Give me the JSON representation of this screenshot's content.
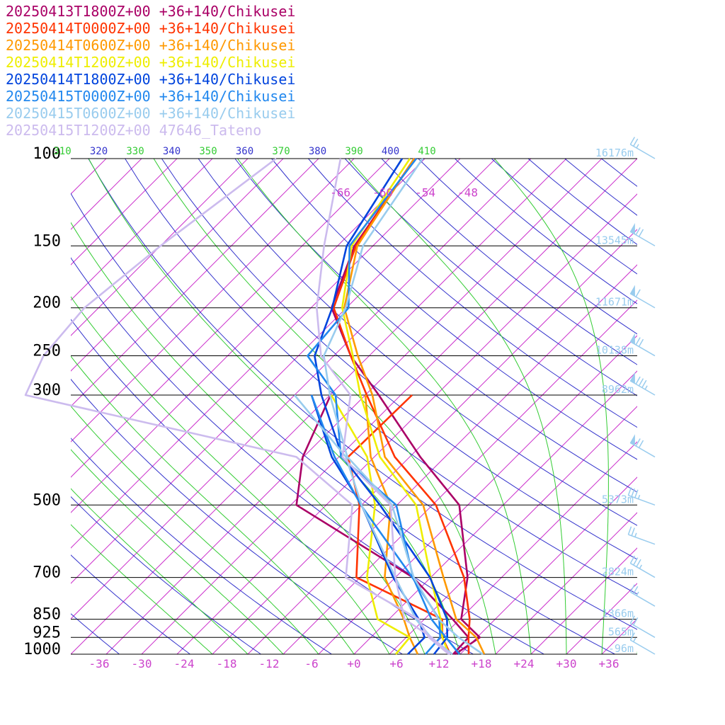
{
  "legend": [
    {
      "label": "20250413T1800Z+00 +36+140/Chikusei",
      "color": "#aa0066"
    },
    {
      "label": "20250414T0000Z+00 +36+140/Chikusei",
      "color": "#ff3300"
    },
    {
      "label": "20250414T0600Z+00 +36+140/Chikusei",
      "color": "#ff9900"
    },
    {
      "label": "20250414T1200Z+00 +36+140/Chikusei",
      "color": "#eeee00"
    },
    {
      "label": "20250414T1800Z+00 +36+140/Chikusei",
      "color": "#0044dd"
    },
    {
      "label": "20250415T0000Z+00 +36+140/Chikusei",
      "color": "#2288ee"
    },
    {
      "label": "20250415T0600Z+00 +36+140/Chikusei",
      "color": "#99ccee"
    },
    {
      "label": "20250415T1200Z+00 47646_Tateno",
      "color": "#ccbbee"
    }
  ],
  "chart_data": {
    "type": "line",
    "chart_kind": "skew-T log-P sounding",
    "pressure_ticks": [
      "100",
      "150",
      "200",
      "250",
      "300",
      "500",
      "700",
      "850",
      "925",
      "1000"
    ],
    "temperature_ticks": [
      "-36",
      "-30",
      "-24",
      "-18",
      "-12",
      "-6",
      "+0",
      "+6",
      "+12",
      "+18",
      "+24",
      "+30",
      "+36"
    ],
    "upper_temperature_ticks": [
      "-66",
      "-60",
      "-54",
      "-48"
    ],
    "theta_ticks": [
      "310",
      "320",
      "330",
      "340",
      "350",
      "360",
      "370",
      "380",
      "390",
      "400",
      "410"
    ],
    "heights": [
      {
        "p": 100,
        "label": "16176m"
      },
      {
        "p": 150,
        "label": "13545m"
      },
      {
        "p": 200,
        "label": "11671m"
      },
      {
        "p": 250,
        "label": "10138m"
      },
      {
        "p": 300,
        "label": "8962m"
      },
      {
        "p": 500,
        "label": "5373m"
      },
      {
        "p": 700,
        "label": "2824m"
      },
      {
        "p": 850,
        "label": "1366m"
      },
      {
        "p": 925,
        "label": "565m"
      },
      {
        "p": 1000,
        "label": "-96m"
      }
    ],
    "p_range": [
      100,
      1000
    ],
    "t_range_at_1000": [
      -40,
      40
    ],
    "colors": {
      "isotherm": "#cc33cc",
      "isobar": "#000000",
      "dry_adiabat": "#3333cc",
      "moist_adiabat": "#33cc33",
      "height_label": "#99ccee",
      "wind_barb": "#99ccee",
      "t_label": "#cc44cc",
      "theta_dry": "#3333cc",
      "theta_moist": "#33cc33"
    },
    "series": [
      {
        "name": "20250413T1800Z+00 +36+140/Chikusei",
        "color": "#aa0066",
        "temperature": [
          [
            1000,
            14.3
          ],
          [
            925,
            15.4
          ],
          [
            850,
            10.2
          ],
          [
            700,
            5.2
          ],
          [
            500,
            -6.2
          ],
          [
            400,
            -18.5
          ],
          [
            300,
            -33.1
          ],
          [
            250,
            -42.6
          ],
          [
            200,
            -52.1
          ],
          [
            150,
            -57.6
          ],
          [
            100,
            -61.4
          ]
        ],
        "dewpoint": [
          [
            1000,
            14.0
          ],
          [
            925,
            13.8
          ],
          [
            850,
            9.0
          ],
          [
            700,
            -2.5
          ],
          [
            500,
            -29.2
          ],
          [
            400,
            -35.1
          ],
          [
            300,
            -39.9
          ]
        ]
      },
      {
        "name": "20250414T0000Z+00 +36+140/Chikusei",
        "color": "#ff3300",
        "temperature": [
          [
            1000,
            16.2
          ],
          [
            925,
            13.8
          ],
          [
            850,
            11.4
          ],
          [
            700,
            4.7
          ],
          [
            500,
            -9.5
          ],
          [
            400,
            -22.1
          ],
          [
            300,
            -34.8
          ],
          [
            250,
            -42.6
          ],
          [
            200,
            -51.8
          ],
          [
            150,
            -57.4
          ],
          [
            100,
            -61.5
          ]
        ],
        "dewpoint": [
          [
            1000,
            13.6
          ],
          [
            925,
            10.1
          ],
          [
            850,
            7.5
          ],
          [
            700,
            -10.5
          ],
          [
            500,
            -20.3
          ],
          [
            400,
            -28.7
          ],
          [
            300,
            -28.4
          ]
        ]
      },
      {
        "name": "20250414T0600Z+00 +36+140/Chikusei",
        "color": "#ff9900",
        "temperature": [
          [
            1000,
            18.4
          ],
          [
            925,
            14.9
          ],
          [
            850,
            9.5
          ],
          [
            700,
            1.8
          ],
          [
            500,
            -11.3
          ],
          [
            400,
            -23.5
          ],
          [
            300,
            -34.0
          ],
          [
            250,
            -41.6
          ],
          [
            200,
            -50.3
          ],
          [
            150,
            -57.2
          ],
          [
            100,
            -61.5
          ]
        ],
        "dewpoint": [
          [
            1000,
            9.0
          ],
          [
            925,
            5.5
          ],
          [
            850,
            2.1
          ],
          [
            700,
            -6.5
          ],
          [
            500,
            -15.9
          ],
          [
            400,
            -25.5
          ],
          [
            300,
            -35.0
          ]
        ]
      },
      {
        "name": "20250414T1200Z+00 +36+140/Chikusei",
        "color": "#eeee00",
        "temperature": [
          [
            1000,
            13.4
          ],
          [
            925,
            10.1
          ],
          [
            850,
            7.3
          ],
          [
            700,
            0.0
          ],
          [
            500,
            -12.3
          ],
          [
            400,
            -24.2
          ],
          [
            300,
            -35.7
          ],
          [
            250,
            -42.3
          ],
          [
            200,
            -50.6
          ],
          [
            150,
            -58.0
          ],
          [
            100,
            -62.1
          ]
        ],
        "dewpoint": [
          [
            1000,
            5.9
          ],
          [
            925,
            5.5
          ],
          [
            850,
            -1.6
          ],
          [
            700,
            -9.0
          ],
          [
            500,
            -18.1
          ],
          [
            400,
            -26.0
          ],
          [
            300,
            -39.8
          ]
        ]
      },
      {
        "name": "20250414T1800Z+00 +36+140/Chikusei",
        "color": "#0044dd",
        "temperature": [
          [
            1000,
            11.3
          ],
          [
            925,
            10.8
          ],
          [
            850,
            8.2
          ],
          [
            700,
            -0.1
          ],
          [
            500,
            -17.4
          ],
          [
            400,
            -29.5
          ],
          [
            300,
            -41.2
          ],
          [
            250,
            -47.7
          ],
          [
            200,
            -52.0
          ],
          [
            150,
            -58.7
          ],
          [
            100,
            -63.2
          ]
        ],
        "dewpoint": [
          [
            1000,
            7.6
          ],
          [
            925,
            7.6
          ],
          [
            850,
            4.2
          ],
          [
            700,
            -5.3
          ],
          [
            500,
            -20.0
          ],
          [
            400,
            -31.0
          ],
          [
            300,
            -42.6
          ]
        ]
      },
      {
        "name": "20250415T0000Z+00 +36+140/Chikusei",
        "color": "#2288ee",
        "temperature": [
          [
            1000,
            14.9
          ],
          [
            925,
            10.6
          ],
          [
            850,
            6.0
          ],
          [
            700,
            -2.5
          ],
          [
            500,
            -15.1
          ],
          [
            400,
            -29.7
          ],
          [
            300,
            -39.2
          ],
          [
            250,
            -48.7
          ],
          [
            200,
            -49.7
          ],
          [
            150,
            -58.3
          ],
          [
            100,
            -61.2
          ]
        ],
        "dewpoint": [
          [
            1000,
            10.1
          ],
          [
            925,
            9.8
          ],
          [
            850,
            7.1
          ],
          [
            700,
            -2.6
          ],
          [
            500,
            -20.1
          ],
          [
            400,
            -30.6
          ],
          [
            300,
            -42.6
          ]
        ]
      },
      {
        "name": "20250415T0600Z+00 +36+140/Chikusei",
        "color": "#99ccee",
        "temperature": [
          [
            1000,
            18.2
          ],
          [
            925,
            12.4
          ],
          [
            850,
            7.0
          ],
          [
            700,
            -2.4
          ],
          [
            500,
            -15.7
          ],
          [
            400,
            -28.8
          ],
          [
            300,
            -40.0
          ],
          [
            250,
            -46.4
          ],
          [
            200,
            -50.1
          ],
          [
            150,
            -56.4
          ],
          [
            100,
            -60.3
          ]
        ],
        "dewpoint": [
          [
            1000,
            13.9
          ],
          [
            925,
            8.5
          ],
          [
            850,
            3.8
          ],
          [
            700,
            -5.0
          ],
          [
            500,
            -20.0
          ],
          [
            400,
            -29.0
          ],
          [
            300,
            -45.0
          ]
        ]
      },
      {
        "name": "20250415T1200Z+00 47646_Tateno",
        "color": "#ccbbee",
        "temperature": [
          [
            1000,
            13.6
          ],
          [
            925,
            8.6
          ],
          [
            850,
            2.2
          ],
          [
            700,
            -5.0
          ],
          [
            500,
            -15.9
          ],
          [
            400,
            -29.5
          ],
          [
            300,
            -37.1
          ],
          [
            250,
            -46.8
          ],
          [
            200,
            -54.2
          ],
          [
            150,
            -61.9
          ],
          [
            100,
            -71.9
          ]
        ],
        "dewpoint": [
          [
            1000,
            13.4
          ],
          [
            925,
            8.2
          ],
          [
            850,
            4.2
          ],
          [
            700,
            -12.0
          ],
          [
            500,
            -21.3
          ],
          [
            400,
            -36.0
          ],
          [
            300,
            -83.0
          ],
          [
            250,
            -86.0
          ],
          [
            200,
            -87.0
          ],
          [
            150,
            -85.0
          ],
          [
            100,
            -81.0
          ]
        ]
      }
    ],
    "wind_barbs": [
      {
        "p": 100,
        "speed_kt": 25,
        "dir_deg": 300
      },
      {
        "p": 150,
        "speed_kt": 70,
        "dir_deg": 300
      },
      {
        "p": 200,
        "speed_kt": 60,
        "dir_deg": 300
      },
      {
        "p": 250,
        "speed_kt": 70,
        "dir_deg": 300
      },
      {
        "p": 300,
        "speed_kt": 85,
        "dir_deg": 300
      },
      {
        "p": 400,
        "speed_kt": 70,
        "dir_deg": 300
      },
      {
        "p": 500,
        "speed_kt": 35,
        "dir_deg": 290
      },
      {
        "p": 600,
        "speed_kt": 25,
        "dir_deg": 290
      },
      {
        "p": 700,
        "speed_kt": 35,
        "dir_deg": 300
      },
      {
        "p": 800,
        "speed_kt": 25,
        "dir_deg": 300
      },
      {
        "p": 925,
        "speed_kt": 20,
        "dir_deg": 300
      },
      {
        "p": 1000,
        "speed_kt": 15,
        "dir_deg": 300
      }
    ]
  }
}
